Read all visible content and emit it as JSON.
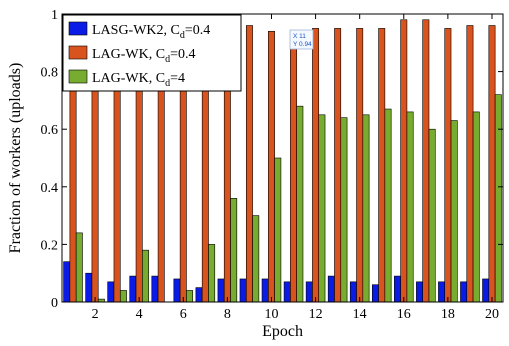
{
  "chart_data": {
    "type": "bar",
    "title": "",
    "xlabel": "Epoch",
    "ylabel": "Fraction of workers (uploads)",
    "ylim": [
      0,
      1
    ],
    "yticks": [
      "0",
      "0.2",
      "0.4",
      "0.6",
      "0.8",
      "1"
    ],
    "ytick_values": [
      0,
      0.2,
      0.4,
      0.6,
      0.8,
      1
    ],
    "categories": [
      1,
      2,
      3,
      4,
      5,
      6,
      7,
      8,
      9,
      10,
      11,
      12,
      13,
      14,
      15,
      16,
      17,
      18,
      19,
      20
    ],
    "xticks": [
      "2",
      "4",
      "6",
      "8",
      "10",
      "12",
      "14",
      "16",
      "18",
      "20"
    ],
    "xtick_values": [
      2,
      4,
      6,
      8,
      10,
      12,
      14,
      16,
      18,
      20
    ],
    "grid": false,
    "legend_position": "top-left",
    "series": [
      {
        "name": "LASG-WK2, C",
        "sub": "d",
        "suffix": "=0.4",
        "color": "#0a1be6",
        "values": [
          0.14,
          0.1,
          0.07,
          0.09,
          0.09,
          0.08,
          0.05,
          0.08,
          0.08,
          0.08,
          0.07,
          0.07,
          0.09,
          0.07,
          0.06,
          0.09,
          0.07,
          0.07,
          0.07,
          0.08
        ]
      },
      {
        "name": "LAG-WK, C",
        "sub": "d",
        "suffix": "=0.4",
        "color": "#d9531e",
        "values": [
          0.96,
          0.96,
          0.96,
          0.96,
          0.96,
          0.96,
          0.96,
          0.96,
          0.96,
          0.94,
          0.94,
          0.95,
          0.95,
          0.95,
          0.95,
          0.98,
          0.98,
          0.95,
          0.96,
          0.96
        ]
      },
      {
        "name": "LAG-WK, C",
        "sub": "d",
        "suffix": "=4",
        "color": "#77ac30",
        "values": [
          0.24,
          0.01,
          0.04,
          0.18,
          0.0,
          0.04,
          0.2,
          0.36,
          0.3,
          0.5,
          0.68,
          0.65,
          0.64,
          0.65,
          0.67,
          0.66,
          0.6,
          0.63,
          0.66,
          0.72
        ]
      }
    ],
    "datatip": {
      "x_text": "X 11",
      "y_text": "Y 0.94"
    }
  }
}
